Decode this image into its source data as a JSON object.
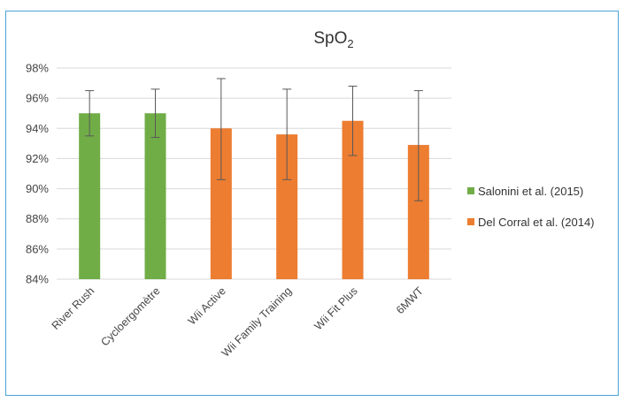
{
  "chart_data": {
    "type": "bar",
    "title": "SpO",
    "title_subscript": "2",
    "categories": [
      "River Rush",
      "Cycloergomètre",
      "Wii Active",
      "Wii Family Training",
      "Wii Fit Plus",
      "6MWT"
    ],
    "values": [
      95.0,
      95.0,
      94.0,
      93.6,
      94.5,
      92.9
    ],
    "error_low": [
      93.5,
      93.4,
      90.6,
      90.6,
      92.2,
      89.2
    ],
    "error_high": [
      96.5,
      96.6,
      97.3,
      96.6,
      96.8,
      96.5
    ],
    "bar_series": [
      0,
      0,
      1,
      1,
      1,
      1
    ],
    "series": [
      {
        "name": "Salonini et al. (2015)",
        "color": "#70ad47"
      },
      {
        "name": "Del Corral et al. (2014)",
        "color": "#ed7d31"
      }
    ],
    "ylim": [
      84,
      98
    ],
    "yticks": [
      84,
      86,
      88,
      90,
      92,
      94,
      96,
      98
    ],
    "ytick_labels": [
      "84%",
      "86%",
      "88%",
      "90%",
      "92%",
      "94%",
      "96%",
      "98%"
    ],
    "grid": true,
    "legend_position": "right"
  }
}
